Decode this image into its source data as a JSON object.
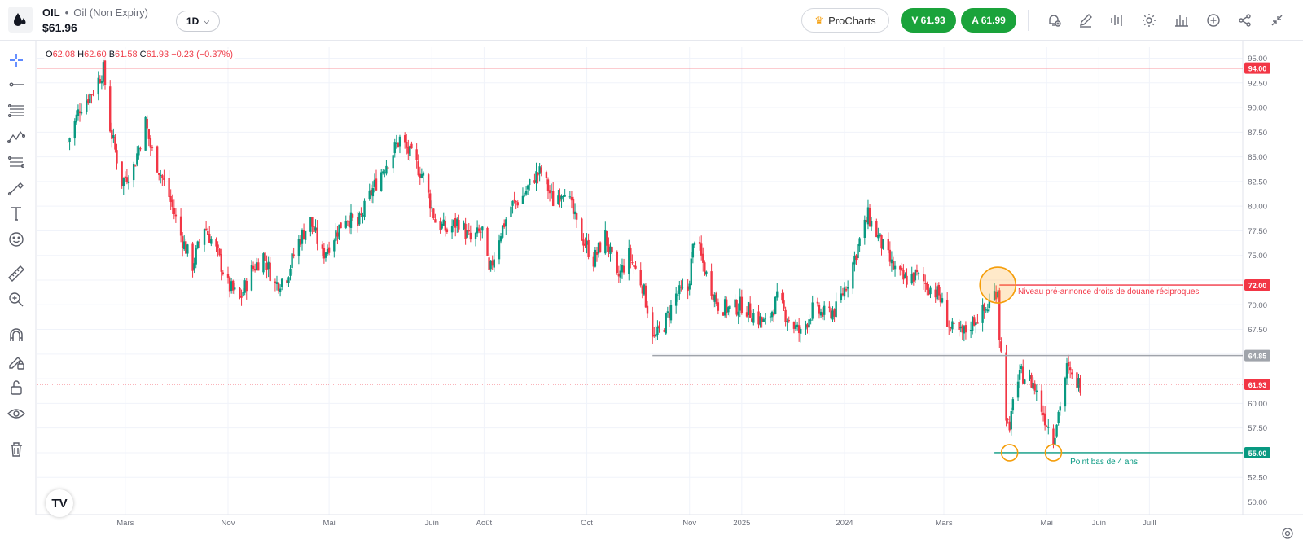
{
  "header": {
    "symbol": "OIL",
    "description": "Oil (Non Expiry)",
    "price": "$61.96",
    "timeframe": "1D",
    "prochart_label": "ProCharts",
    "sell_label": "V 61.93",
    "buy_label": "A 61.99",
    "accent_green": "#1aa33b"
  },
  "ohlc": {
    "o_label": "O",
    "o": "62.08",
    "h_label": "H",
    "h": "62.60",
    "b_label": "B",
    "b": "61.58",
    "c_label": "C",
    "c": "61.93",
    "change": "−0.23 (−0.37%)"
  },
  "toolbar_icons": [
    "alert-icon",
    "draw-icon",
    "compare-icon",
    "settings-icon",
    "indicators-icon",
    "add-icon",
    "share-icon",
    "collapse-icon"
  ],
  "left_tools": [
    "crosshair-icon",
    "line-icon",
    "fib-icon",
    "pattern-icon",
    "channel-icon",
    "brush-icon",
    "text-icon",
    "emoji-icon",
    "ruler-icon",
    "zoom-icon",
    "magnet-icon",
    "lock-draw-icon",
    "unlock-icon",
    "eye-icon",
    "trash-icon"
  ],
  "chart_data": {
    "type": "candlestick",
    "ylim": [
      49,
      96
    ],
    "y_ticks": [
      "95.00",
      "92.50",
      "90.00",
      "87.50",
      "85.00",
      "82.50",
      "80.00",
      "77.50",
      "75.00",
      "72.50",
      "70.00",
      "67.50",
      "65.00",
      "62.50",
      "60.00",
      "57.50",
      "55.00",
      "52.50",
      "50.00"
    ],
    "x_ticks": [
      "Nov",
      "2024",
      "Mars",
      "Mai",
      "Juin",
      "Août",
      "Oct",
      "Nov",
      "2025",
      "Mars",
      "Mai",
      "Juin",
      "Juill"
    ],
    "price_path": [
      [
        "2023-09-28",
        86.5
      ],
      [
        "2023-10-05",
        90.0
      ],
      [
        "2023-10-12",
        91.5
      ],
      [
        "2023-10-19",
        93.8
      ],
      [
        "2023-10-23",
        88.0
      ],
      [
        "2023-10-30",
        82.5
      ],
      [
        "2023-11-06",
        84.0
      ],
      [
        "2023-11-13",
        88.5
      ],
      [
        "2023-11-16",
        86.0
      ],
      [
        "2023-11-27",
        81.0
      ],
      [
        "2023-12-04",
        77.0
      ],
      [
        "2023-12-11",
        74.0
      ],
      [
        "2023-12-18",
        78.0
      ],
      [
        "2023-12-25",
        75.5
      ],
      [
        "2024-01-01",
        72.0
      ],
      [
        "2024-01-08",
        70.5
      ],
      [
        "2024-01-15",
        73.5
      ],
      [
        "2024-01-22",
        75.0
      ],
      [
        "2024-01-29",
        72.0
      ],
      [
        "2024-02-05",
        73.0
      ],
      [
        "2024-02-12",
        76.5
      ],
      [
        "2024-02-19",
        78.5
      ],
      [
        "2024-02-26",
        75.0
      ],
      [
        "2024-03-04",
        77.0
      ],
      [
        "2024-03-11",
        79.0
      ],
      [
        "2024-03-18",
        78.0
      ],
      [
        "2024-03-25",
        81.0
      ],
      [
        "2024-04-01",
        83.5
      ],
      [
        "2024-04-08",
        85.5
      ],
      [
        "2024-04-12",
        86.8
      ],
      [
        "2024-04-19",
        85.0
      ],
      [
        "2024-04-26",
        83.0
      ],
      [
        "2024-05-03",
        78.5
      ],
      [
        "2024-05-10",
        77.5
      ],
      [
        "2024-05-17",
        78.5
      ],
      [
        "2024-05-24",
        76.5
      ],
      [
        "2024-05-31",
        77.5
      ],
      [
        "2024-06-04",
        73.0
      ],
      [
        "2024-06-10",
        77.0
      ],
      [
        "2024-06-17",
        80.0
      ],
      [
        "2024-06-24",
        81.0
      ],
      [
        "2024-07-01",
        83.0
      ],
      [
        "2024-07-05",
        83.5
      ],
      [
        "2024-07-12",
        80.5
      ],
      [
        "2024-07-19",
        82.0
      ],
      [
        "2024-07-26",
        78.0
      ],
      [
        "2024-08-05",
        74.5
      ],
      [
        "2024-08-12",
        77.0
      ],
      [
        "2024-08-19",
        72.5
      ],
      [
        "2024-08-26",
        75.0
      ],
      [
        "2024-09-03",
        72.0
      ],
      [
        "2024-09-10",
        66.5
      ],
      [
        "2024-09-16",
        68.0
      ],
      [
        "2024-09-23",
        71.0
      ],
      [
        "2024-09-30",
        71.5
      ],
      [
        "2024-10-04",
        77.0
      ],
      [
        "2024-10-11",
        73.0
      ],
      [
        "2024-10-18",
        70.0
      ],
      [
        "2024-10-25",
        69.5
      ],
      [
        "2024-11-01",
        70.0
      ],
      [
        "2024-11-08",
        69.0
      ],
      [
        "2024-11-15",
        68.0
      ],
      [
        "2024-11-22",
        70.5
      ],
      [
        "2024-11-29",
        68.5
      ],
      [
        "2024-12-06",
        67.0
      ],
      [
        "2024-12-13",
        69.5
      ],
      [
        "2024-12-20",
        69.0
      ],
      [
        "2024-12-27",
        69.5
      ],
      [
        "2025-01-03",
        72.5
      ],
      [
        "2025-01-10",
        76.5
      ],
      [
        "2025-01-15",
        79.0
      ],
      [
        "2025-01-22",
        76.5
      ],
      [
        "2025-01-29",
        74.0
      ],
      [
        "2025-02-05",
        72.5
      ],
      [
        "2025-02-12",
        73.0
      ],
      [
        "2025-02-19",
        72.0
      ],
      [
        "2025-02-26",
        71.0
      ],
      [
        "2025-03-05",
        67.5
      ],
      [
        "2025-03-12",
        67.0
      ],
      [
        "2025-03-19",
        68.5
      ],
      [
        "2025-03-26",
        69.5
      ],
      [
        "2025-04-02",
        71.8
      ],
      [
        "2025-04-03",
        67.0
      ],
      [
        "2025-04-07",
        59.0
      ],
      [
        "2025-04-09",
        56.5
      ],
      [
        "2025-04-11",
        61.0
      ],
      [
        "2025-04-16",
        63.0
      ],
      [
        "2025-04-23",
        62.0
      ],
      [
        "2025-04-30",
        58.5
      ],
      [
        "2025-05-05",
        56.5
      ],
      [
        "2025-05-09",
        60.0
      ],
      [
        "2025-05-13",
        63.5
      ],
      [
        "2025-05-16",
        62.5
      ],
      [
        "2025-05-21",
        61.93
      ]
    ],
    "horizontal_lines": [
      {
        "price": 94.0,
        "label": "94.00",
        "color": "#f23645"
      },
      {
        "price": 72.0,
        "label": "72.00",
        "color": "#f23645",
        "annotation": "Niveau pré-annonce droits de douane réciproques"
      },
      {
        "price": 64.85,
        "label": "64.85",
        "color": "#a0a4ab"
      },
      {
        "price": 55.0,
        "label": "55.00",
        "color": "#089981",
        "annotation": "Point bas de 4 ans"
      }
    ],
    "current_price": {
      "price": 61.93,
      "label": "61.93",
      "color": "#f23645"
    },
    "up_color": "#089981",
    "down_color": "#f23645"
  }
}
